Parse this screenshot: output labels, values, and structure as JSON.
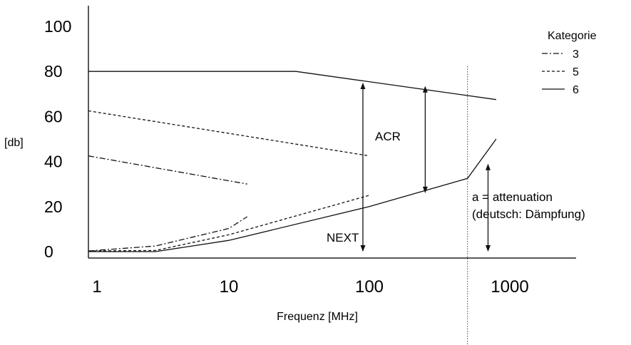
{
  "chart_data": {
    "type": "line",
    "x_scale": "log",
    "xlabel": "Frequenz [MHz]",
    "ylabel": "[db]",
    "xlim": [
      1,
      2500
    ],
    "ylim": [
      0,
      110
    ],
    "x_ticks": [
      1,
      10,
      100,
      1000
    ],
    "x_tick_labels": [
      "1",
      "10",
      "100",
      "1000"
    ],
    "y_ticks": [
      0,
      20,
      40,
      60,
      80,
      100
    ],
    "y_tick_labels": [
      "0",
      "20",
      "40",
      "60",
      "80",
      "100"
    ],
    "legend": {
      "title": "Kategorie",
      "position": "top-right",
      "entries": [
        {
          "label": "3",
          "style": "dash-dot"
        },
        {
          "label": "5",
          "style": "dashed"
        },
        {
          "label": "6",
          "style": "solid"
        }
      ]
    },
    "series": [
      {
        "category": "3",
        "style": "dash-dot",
        "role": "upper",
        "points": [
          [
            1,
            42.5
          ],
          [
            13.5,
            30
          ]
        ]
      },
      {
        "category": "3",
        "style": "dash-dot",
        "role": "lower",
        "points": [
          [
            1,
            0.3
          ],
          [
            3,
            2.5
          ],
          [
            10,
            10.3
          ],
          [
            13.5,
            15.5
          ]
        ]
      },
      {
        "category": "5",
        "style": "dashed",
        "role": "upper",
        "points": [
          [
            1,
            62.5
          ],
          [
            100,
            42.5
          ]
        ]
      },
      {
        "category": "5",
        "style": "dashed",
        "role": "lower",
        "points": [
          [
            1,
            0.3
          ],
          [
            3,
            0.5
          ],
          [
            10,
            7.5
          ],
          [
            100,
            25
          ]
        ]
      },
      {
        "category": "6",
        "style": "solid",
        "role": "upper",
        "points": [
          [
            1,
            80
          ],
          [
            30,
            80
          ],
          [
            800,
            67.5
          ]
        ]
      },
      {
        "category": "6",
        "style": "solid",
        "role": "lower",
        "points": [
          [
            1,
            0
          ],
          [
            3,
            0
          ],
          [
            10,
            5
          ],
          [
            100,
            20
          ],
          [
            500,
            32.5
          ],
          [
            800,
            50
          ]
        ]
      }
    ],
    "vertical_reference_x": 500,
    "annotations": [
      {
        "text": "ACR",
        "type": "double-arrow",
        "x": 250,
        "from": 26,
        "to": 73.5
      },
      {
        "text": "NEXT",
        "type": "double-arrow",
        "x": 90,
        "from": 0,
        "to": 75
      },
      {
        "text": "a = attenuation",
        "type": "double-arrow",
        "x": 700,
        "from": 0,
        "to": 39
      },
      {
        "text": "(deutsch: Dämpfung)",
        "type": "label"
      }
    ]
  }
}
